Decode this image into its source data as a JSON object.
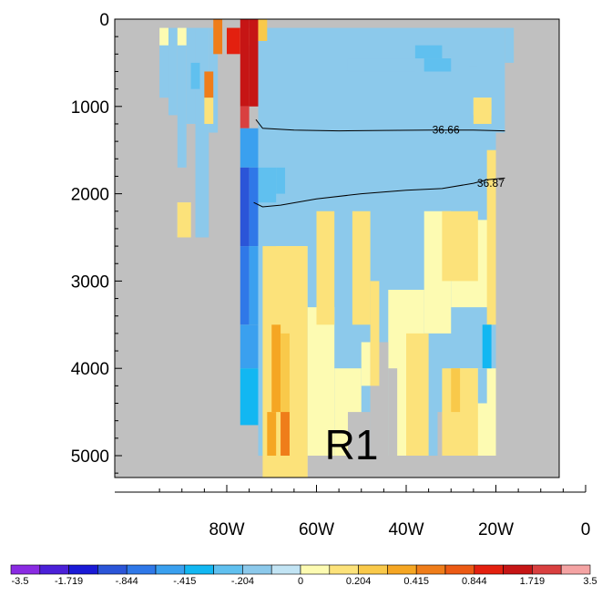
{
  "chart_data": {
    "type": "heatmap",
    "title": "",
    "xlabel": "",
    "ylabel": "",
    "xlim": [
      -100,
      0
    ],
    "ylim": [
      5250,
      0
    ],
    "x_ticks": [
      {
        "value": -80,
        "label": "80W"
      },
      {
        "value": -60,
        "label": "60W"
      },
      {
        "value": -40,
        "label": "40W"
      },
      {
        "value": -20,
        "label": "20W"
      },
      {
        "value": 0,
        "label": "0"
      }
    ],
    "y_ticks": [
      {
        "value": 0,
        "label": "0"
      },
      {
        "value": 1000,
        "label": "1000"
      },
      {
        "value": 2000,
        "label": "2000"
      },
      {
        "value": 3000,
        "label": "3000"
      },
      {
        "value": 4000,
        "label": "4000"
      },
      {
        "value": 5000,
        "label": "5000"
      }
    ],
    "region_label": "R1",
    "colorbar": {
      "colors": [
        "#8a2be2",
        "#4b20d8",
        "#1a1ad6",
        "#2b55d8",
        "#2f78e8",
        "#3aa0ef",
        "#12b7f2",
        "#60c0ef",
        "#8cc9eb",
        "#c2e4f4",
        "#fdfbb2",
        "#fce27a",
        "#f9c94a",
        "#f5a623",
        "#ef7d1a",
        "#ec5a14",
        "#e3200f",
        "#c61515",
        "#d94040",
        "#f4a3a3"
      ],
      "labels": [
        "-3.5",
        "",
        "-1.719",
        "",
        "-.844",
        "",
        "-.415",
        "",
        "-.204",
        "",
        "0",
        "",
        "0.204",
        "",
        "0.415",
        "",
        "0.844",
        "",
        "1.719",
        "",
        "3.5"
      ]
    },
    "contours": [
      {
        "label": "36.66",
        "points": [
          [
            -73.5,
            1150
          ],
          [
            -72,
            1250
          ],
          [
            -65,
            1270
          ],
          [
            -55,
            1280
          ],
          [
            -45,
            1275
          ],
          [
            -35,
            1270
          ],
          [
            -25,
            1270
          ],
          [
            -18,
            1280
          ]
        ]
      },
      {
        "label": "36.87",
        "points": [
          [
            -74,
            2100
          ],
          [
            -72,
            2150
          ],
          [
            -68,
            2130
          ],
          [
            -60,
            2060
          ],
          [
            -50,
            2000
          ],
          [
            -40,
            1960
          ],
          [
            -32,
            1940
          ],
          [
            -25,
            1880
          ],
          [
            -22,
            1840
          ],
          [
            -18,
            1820
          ]
        ]
      }
    ],
    "land_color": "#c0c0c0",
    "grid": false,
    "cells": [
      {
        "x0": -77,
        "x1": -75,
        "d0": 0,
        "d1": 1000,
        "v": 1.3
      },
      {
        "x0": -75,
        "x1": -73,
        "d0": 0,
        "d1": 1000,
        "v": 1.3
      },
      {
        "x0": -77,
        "x1": -75,
        "d0": 1000,
        "d1": 1250,
        "v": 2.0
      },
      {
        "x0": -80,
        "x1": -77,
        "d0": 100,
        "d1": 400,
        "v": 1.0
      },
      {
        "x0": -83,
        "x1": -81,
        "d0": 0,
        "d1": 400,
        "v": 0.5
      },
      {
        "x0": -73,
        "x1": -71,
        "d0": 0,
        "d1": 250,
        "v": 0.25
      },
      {
        "x0": -77,
        "x1": -73,
        "d0": 1250,
        "d1": 1700,
        "v": -0.5
      },
      {
        "x0": -77,
        "x1": -75,
        "d0": 1700,
        "d1": 2600,
        "v": -1.0
      },
      {
        "x0": -75,
        "x1": -73,
        "d0": 1700,
        "d1": 2600,
        "v": -0.7
      },
      {
        "x0": -77,
        "x1": -75,
        "d0": 2600,
        "d1": 3500,
        "v": -0.8
      },
      {
        "x0": -75,
        "x1": -73,
        "d0": 2600,
        "d1": 3500,
        "v": -0.6
      },
      {
        "x0": -77,
        "x1": -73,
        "d0": 3500,
        "d1": 4000,
        "v": -0.45
      },
      {
        "x0": -77,
        "x1": -73,
        "d0": 4000,
        "d1": 4650,
        "v": -0.38
      },
      {
        "x0": -73,
        "x1": -69,
        "d0": 1700,
        "d1": 2100,
        "v": -0.3
      },
      {
        "x0": -69,
        "x1": -67,
        "d0": 1700,
        "d1": 2000,
        "v": -0.25
      },
      {
        "x0": -88,
        "x1": -86,
        "d0": 500,
        "d1": 800,
        "v": -0.3
      },
      {
        "x0": -85,
        "x1": -83,
        "d0": 600,
        "d1": 900,
        "v": 0.5
      },
      {
        "x0": -85,
        "x1": -83,
        "d0": 900,
        "d1": 1200,
        "v": 0.2
      },
      {
        "x0": -53,
        "x1": -38,
        "d0": 450,
        "d1": 600,
        "v": -0.15
      },
      {
        "x0": -36,
        "x1": -30,
        "d0": 450,
        "d1": 600,
        "v": -0.3
      },
      {
        "x0": -38,
        "x1": -32,
        "d0": 300,
        "d1": 450,
        "v": -0.25
      },
      {
        "x0": -26,
        "x1": -24,
        "d0": 400,
        "d1": 550,
        "v": -0.12
      },
      {
        "x0": -72,
        "x1": -62,
        "d0": 2600,
        "d1": 5250,
        "v": 0.1
      },
      {
        "x0": -70,
        "x1": -68,
        "d0": 3500,
        "d1": 4500,
        "v": 0.3
      },
      {
        "x0": -68,
        "x1": -66,
        "d0": 3600,
        "d1": 5000,
        "v": 0.25
      },
      {
        "x0": -71,
        "x1": -69,
        "d0": 4500,
        "d1": 5000,
        "v": 0.35
      },
      {
        "x0": -68,
        "x1": -66,
        "d0": 4500,
        "d1": 5000,
        "v": 0.45
      },
      {
        "x0": -60,
        "x1": -56,
        "d0": 2200,
        "d1": 3500,
        "v": 0.1
      },
      {
        "x0": -52,
        "x1": -48,
        "d0": 2200,
        "d1": 3500,
        "v": 0.1
      },
      {
        "x0": -48,
        "x1": -46,
        "d0": 3000,
        "d1": 4200,
        "v": 0.1
      },
      {
        "x0": -40,
        "x1": -35,
        "d0": 3600,
        "d1": 5000,
        "v": 0.1
      },
      {
        "x0": -32,
        "x1": -24,
        "d0": 2200,
        "d1": 3000,
        "v": 0.1
      },
      {
        "x0": -32,
        "x1": -24,
        "d0": 4000,
        "d1": 5000,
        "v": 0.1
      },
      {
        "x0": -30,
        "x1": -28,
        "d0": 4000,
        "d1": 4500,
        "v": 0.25
      },
      {
        "x0": -25,
        "x1": -21,
        "d0": 900,
        "d1": 1200,
        "v": 0.1
      },
      {
        "x0": -22,
        "x1": -20,
        "d0": 1500,
        "d1": 3500,
        "v": 0.1
      },
      {
        "x0": -91,
        "x1": -88,
        "d0": 2100,
        "d1": 2500,
        "v": 0.1
      },
      {
        "x0": -23,
        "x1": -21,
        "d0": 3500,
        "d1": 4000,
        "v": -0.4
      },
      {
        "x0": -24,
        "x1": -22,
        "d0": 4000,
        "d1": 4400,
        "v": -0.12
      }
    ]
  }
}
